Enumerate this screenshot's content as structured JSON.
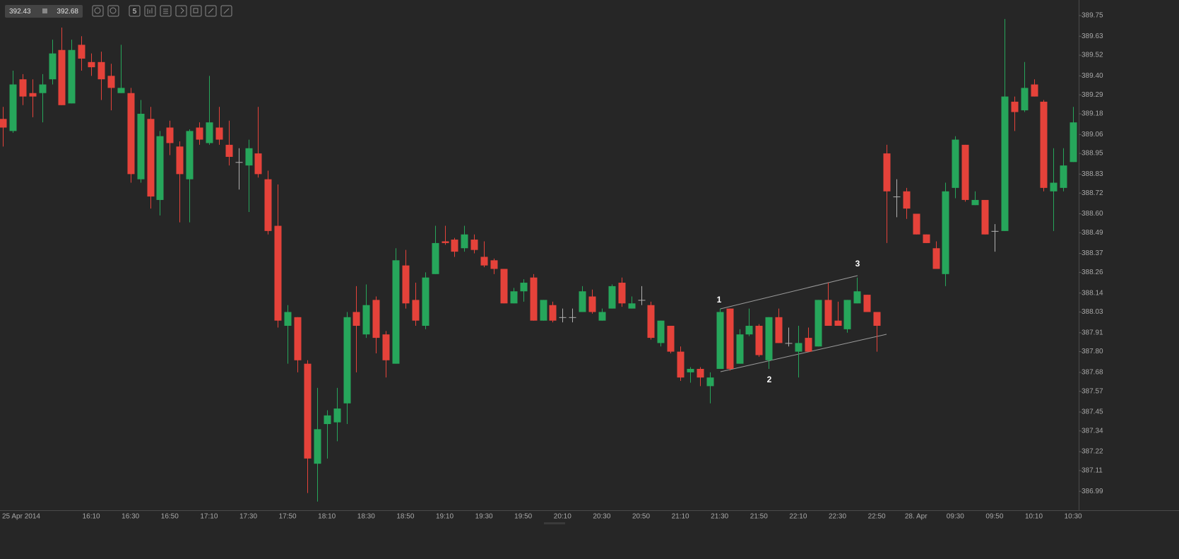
{
  "toolbar": {
    "price_left": "392.43",
    "price_right": "392.68",
    "interval": "5"
  },
  "chart_data": {
    "type": "candlestick",
    "categories": [
      "25 Apr 2014",
      null,
      null,
      null,
      null,
      null,
      null,
      null,
      null,
      "16:10",
      null,
      null,
      null,
      "16:30",
      null,
      null,
      null,
      "16:50",
      null,
      null,
      null,
      "17:10",
      null,
      null,
      null,
      "17:30",
      null,
      null,
      null,
      "17:50",
      null,
      null,
      null,
      "18:10",
      null,
      null,
      null,
      "18:30",
      null,
      null,
      null,
      "18:50",
      null,
      null,
      null,
      "19:10",
      null,
      null,
      null,
      "19:30",
      null,
      null,
      null,
      "19:50",
      null,
      null,
      null,
      "20:10",
      null,
      null,
      null,
      "20:30",
      null,
      null,
      null,
      "20:50",
      null,
      null,
      null,
      "21:10",
      null,
      null,
      null,
      "21:30",
      null,
      null,
      null,
      "21:50",
      null,
      null,
      null,
      "22:10",
      null,
      null,
      null,
      "22:30",
      null,
      null,
      null,
      "22:50",
      null,
      null,
      null,
      "28. Apr",
      null,
      null,
      null,
      "09:30",
      null,
      null,
      null,
      "09:50",
      null,
      null,
      null,
      "10:10",
      null,
      null,
      null,
      "10:30"
    ],
    "open": [
      389.15,
      389.08,
      389.38,
      389.3,
      389.3,
      389.38,
      389.55,
      389.24,
      389.58,
      389.48,
      389.48,
      389.4,
      389.3,
      389.3,
      388.8,
      389.15,
      388.68,
      389.1,
      388.99,
      388.8,
      389.1,
      389.01,
      389.1,
      389.0,
      388.9,
      388.88,
      388.95,
      388.8,
      388.53,
      387.95,
      388.0,
      387.73,
      387.15,
      387.38,
      387.39,
      387.5,
      388.03,
      387.9,
      388.1,
      387.9,
      387.73,
      388.3,
      388.1,
      387.95,
      388.25,
      388.44,
      388.45,
      388.4,
      388.45,
      388.35,
      388.33,
      388.28,
      388.08,
      388.15,
      388.23,
      387.98,
      388.07,
      388.0,
      388.0,
      388.03,
      388.12,
      387.98,
      388.05,
      388.2,
      388.05,
      388.1,
      388.07,
      387.85,
      387.95,
      387.8,
      387.68,
      387.7,
      387.6,
      387.7,
      388.05,
      387.73,
      387.9,
      387.95,
      387.75,
      388.0,
      387.85,
      387.8,
      387.88,
      387.83,
      388.1,
      387.98,
      387.93,
      388.08,
      388.13,
      388.03,
      388.95,
      388.7,
      388.73,
      388.6,
      388.48,
      388.4,
      388.25,
      388.75,
      389.0,
      388.65,
      388.68,
      388.5,
      388.5,
      389.25,
      389.2,
      389.35,
      389.25,
      388.73,
      388.75,
      388.9
    ],
    "high": [
      389.22,
      389.43,
      389.41,
      389.38,
      389.41,
      389.61,
      389.68,
      389.61,
      389.63,
      389.53,
      389.54,
      389.47,
      389.58,
      389.33,
      389.26,
      389.22,
      389.08,
      389.14,
      389.02,
      389.09,
      389.13,
      389.4,
      389.22,
      389.14,
      388.98,
      389.03,
      389.22,
      388.85,
      388.77,
      388.07,
      388.0,
      387.75,
      387.59,
      387.46,
      387.59,
      388.03,
      388.18,
      388.19,
      388.12,
      387.92,
      388.4,
      388.39,
      388.2,
      388.26,
      388.53,
      388.53,
      388.46,
      388.53,
      388.48,
      388.44,
      388.34,
      388.28,
      388.17,
      388.22,
      388.25,
      388.1,
      388.09,
      388.05,
      388.05,
      388.18,
      388.16,
      388.05,
      388.19,
      388.23,
      388.12,
      388.18,
      388.09,
      387.98,
      387.95,
      387.83,
      387.71,
      387.71,
      387.68,
      388.05,
      388.05,
      387.93,
      388.05,
      387.96,
      388.0,
      388.05,
      387.94,
      387.95,
      387.94,
      388.1,
      388.2,
      388.09,
      388.1,
      388.23,
      388.13,
      388.03,
      389.0,
      388.8,
      388.75,
      388.6,
      388.48,
      388.44,
      388.78,
      389.05,
      389.0,
      388.73,
      388.68,
      388.54,
      389.73,
      389.28,
      389.48,
      389.38,
      389.26,
      388.98,
      388.98,
      389.22
    ],
    "low": [
      388.99,
      389.07,
      389.23,
      389.16,
      389.13,
      389.35,
      389.23,
      389.24,
      389.43,
      389.4,
      389.26,
      389.2,
      389.3,
      388.78,
      388.78,
      388.63,
      388.59,
      388.94,
      388.55,
      388.55,
      389.0,
      389.0,
      389.0,
      388.88,
      388.74,
      388.61,
      388.81,
      388.48,
      387.94,
      387.73,
      387.68,
      386.98,
      386.93,
      387.18,
      387.28,
      387.38,
      387.68,
      387.88,
      387.79,
      387.65,
      387.73,
      388.05,
      387.95,
      387.93,
      388.25,
      388.42,
      388.35,
      388.38,
      388.37,
      388.29,
      388.25,
      388.08,
      388.08,
      388.09,
      387.98,
      387.98,
      387.97,
      387.97,
      387.97,
      388.03,
      388.02,
      387.98,
      388.05,
      388.06,
      388.05,
      388.07,
      387.87,
      387.83,
      387.79,
      387.63,
      387.62,
      387.6,
      387.5,
      387.7,
      387.69,
      387.73,
      387.89,
      387.77,
      387.7,
      387.85,
      387.83,
      387.65,
      387.8,
      387.83,
      387.95,
      387.95,
      387.91,
      388.08,
      388.03,
      387.8,
      388.43,
      388.58,
      388.57,
      388.48,
      388.43,
      388.28,
      388.18,
      388.69,
      388.67,
      388.65,
      388.48,
      388.38,
      388.5,
      389.08,
      389.19,
      389.28,
      388.73,
      388.5,
      388.73,
      388.9
    ],
    "close": [
      389.1,
      389.35,
      389.28,
      389.28,
      389.35,
      389.53,
      389.23,
      389.55,
      389.5,
      389.45,
      389.38,
      389.33,
      389.33,
      388.83,
      389.18,
      388.7,
      389.05,
      389.01,
      388.83,
      389.08,
      389.03,
      389.13,
      389.03,
      388.93,
      388.9,
      388.98,
      388.83,
      388.5,
      387.98,
      388.03,
      387.75,
      387.18,
      387.35,
      387.43,
      387.47,
      388.0,
      387.95,
      388.07,
      387.88,
      387.75,
      388.33,
      388.08,
      387.98,
      388.23,
      388.43,
      388.43,
      388.38,
      388.48,
      388.39,
      388.3,
      388.28,
      388.08,
      388.15,
      388.2,
      387.98,
      388.1,
      387.98,
      388.0,
      388.0,
      388.15,
      388.03,
      388.03,
      388.18,
      388.08,
      388.08,
      388.1,
      387.88,
      387.98,
      387.8,
      387.65,
      387.7,
      387.65,
      387.65,
      388.03,
      387.7,
      387.9,
      387.95,
      387.78,
      388.0,
      387.85,
      387.85,
      387.85,
      387.8,
      388.1,
      387.95,
      387.95,
      388.1,
      388.15,
      388.03,
      387.95,
      388.73,
      388.7,
      388.63,
      388.48,
      388.43,
      388.28,
      388.73,
      389.03,
      388.68,
      388.68,
      388.48,
      388.5,
      389.28,
      389.19,
      389.33,
      389.28,
      388.75,
      388.78,
      388.88,
      389.13
    ],
    "up_color": "#26a65b",
    "down_color": "#e5423a",
    "unchanged_color": "#b0b0b0",
    "ylim": [
      386.88,
      389.84
    ],
    "yticks": [
      389.75,
      389.63,
      389.52,
      {
        "value": 389.4,
        "label": "389.40"
      },
      389.29,
      389.18,
      389.06,
      388.95,
      388.83,
      388.72,
      {
        "value": 388.6,
        "label": "388.60"
      },
      388.49,
      388.37,
      388.26,
      388.14,
      388.03,
      387.91,
      {
        "value": 387.8,
        "label": "387.80"
      },
      387.68,
      387.57,
      387.45,
      387.34,
      387.22,
      387.11,
      386.99
    ],
    "grid": false,
    "annotations": [
      "1",
      "2",
      "3"
    ]
  }
}
